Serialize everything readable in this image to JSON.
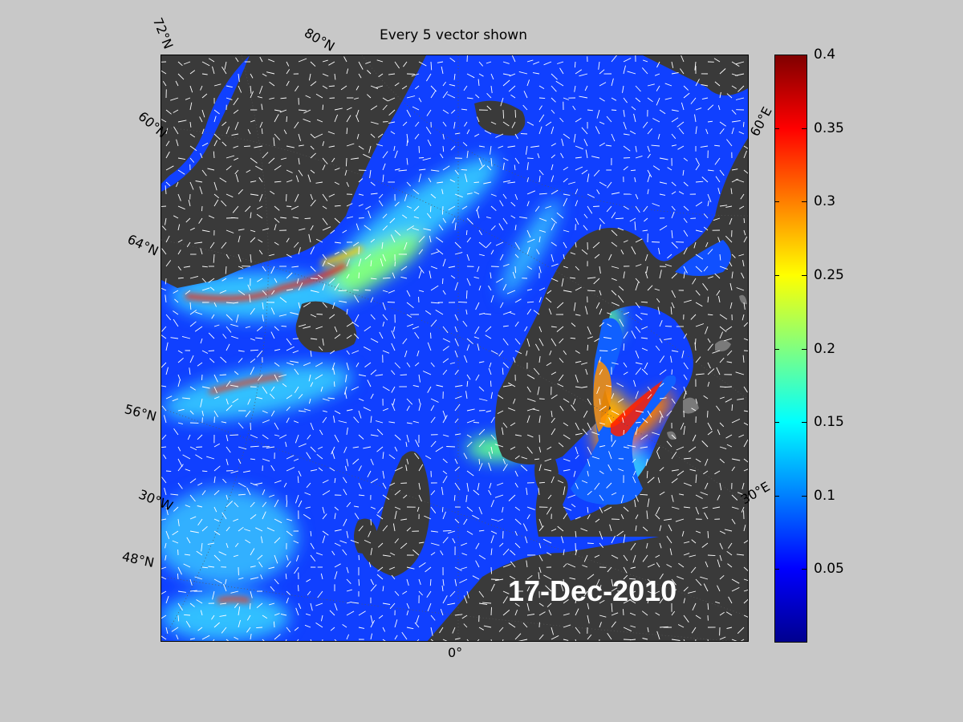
{
  "title": "Every 5 vector shown",
  "date": "17-Dec-2010",
  "map": {
    "lat_labels": [
      "72°N",
      "60°N",
      "64°N",
      "56°N",
      "48°N"
    ],
    "lon_labels": [
      "80°N",
      "60°E",
      "30°E",
      "30°W",
      "0°"
    ],
    "land_color": "#3a3a3a",
    "ice_color": "#7a7a7a",
    "vector_color": "#ffffff"
  },
  "colorbar": {
    "ticks": [
      "0.4",
      "0.35",
      "0.3",
      "0.25",
      "0.2",
      "0.15",
      "0.1",
      "0.05"
    ],
    "range": [
      0,
      0.4
    ],
    "colormap": "jet"
  }
}
